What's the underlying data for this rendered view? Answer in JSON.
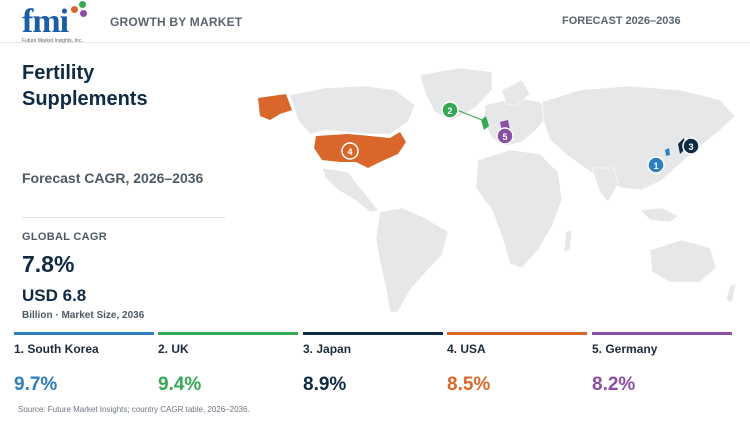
{
  "header": {
    "logo_text": "fmi",
    "logo_subtext": "Future Market Insights, Inc.",
    "section_label": "GROWTH BY MARKET",
    "forecast_label": "FORECAST 2026–2036"
  },
  "panel": {
    "title": "Fertility Supplements",
    "subtitle": "Forecast CAGR, 2026–2036",
    "global_cagr_label": "GLOBAL CAGR",
    "global_cagr_value": "7.8%",
    "market_size_value": "USD 6.8",
    "market_size_note": "Billion · Market Size, 2036"
  },
  "colors": {
    "south_korea": "#2e7fbf",
    "uk": "#35a853",
    "japan": "#0f2a44",
    "usa": "#d9672b",
    "germany": "#8a4fa3",
    "land": "#e6e7e8"
  },
  "chart_data": {
    "type": "bar",
    "title": "",
    "categories": [
      "South Korea",
      "UK",
      "Japan",
      "USA",
      "Germany"
    ],
    "ranks": [
      1,
      2,
      3,
      4,
      5
    ],
    "labels": [
      "1. South Korea",
      "2. UK",
      "3. Japan",
      "4. USA",
      "5. Germany"
    ],
    "value_labels": [
      "9.7%",
      "9.4%",
      "8.9%",
      "8.5%",
      "8.2%"
    ],
    "values": [
      9.7,
      9.4,
      8.9,
      8.5,
      8.2
    ],
    "unit": "%"
  },
  "map_markers": [
    "1",
    "2",
    "3",
    "4",
    "5"
  ],
  "footer": {
    "source": "Source: Future Market Insights; country CAGR table, 2026–2036."
  }
}
